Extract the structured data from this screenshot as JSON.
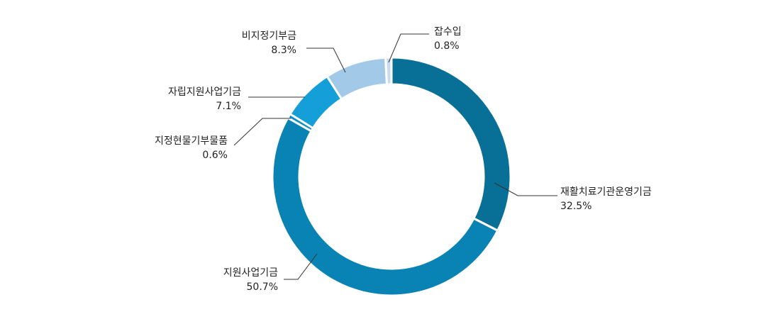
{
  "chart_data": {
    "type": "pie",
    "donut": true,
    "title": "",
    "start": "top",
    "direction": "clockwise",
    "colors": {
      "label_text": "#222222",
      "leader_line": "#333333",
      "separator": "#ffffff"
    },
    "slices": [
      {
        "name": "재활치료기관운영기금",
        "value": 32.5,
        "label": "32.5%",
        "color": "#086f96"
      },
      {
        "name": "지원사업기금",
        "value": 50.7,
        "label": "50.7%",
        "color": "#0983b4"
      },
      {
        "name": "지정현물기부물품",
        "value": 0.6,
        "label": "0.6%",
        "color": "#0e8ec6"
      },
      {
        "name": "자립지원사업기금",
        "value": 7.1,
        "label": "7.1%",
        "color": "#159fd8"
      },
      {
        "name": "비지정기부금",
        "value": 8.3,
        "label": "8.3%",
        "color": "#a3c9e8"
      },
      {
        "name": "잡수입",
        "value": 0.8,
        "label": "0.8%",
        "color": "#c9dcef"
      }
    ]
  }
}
